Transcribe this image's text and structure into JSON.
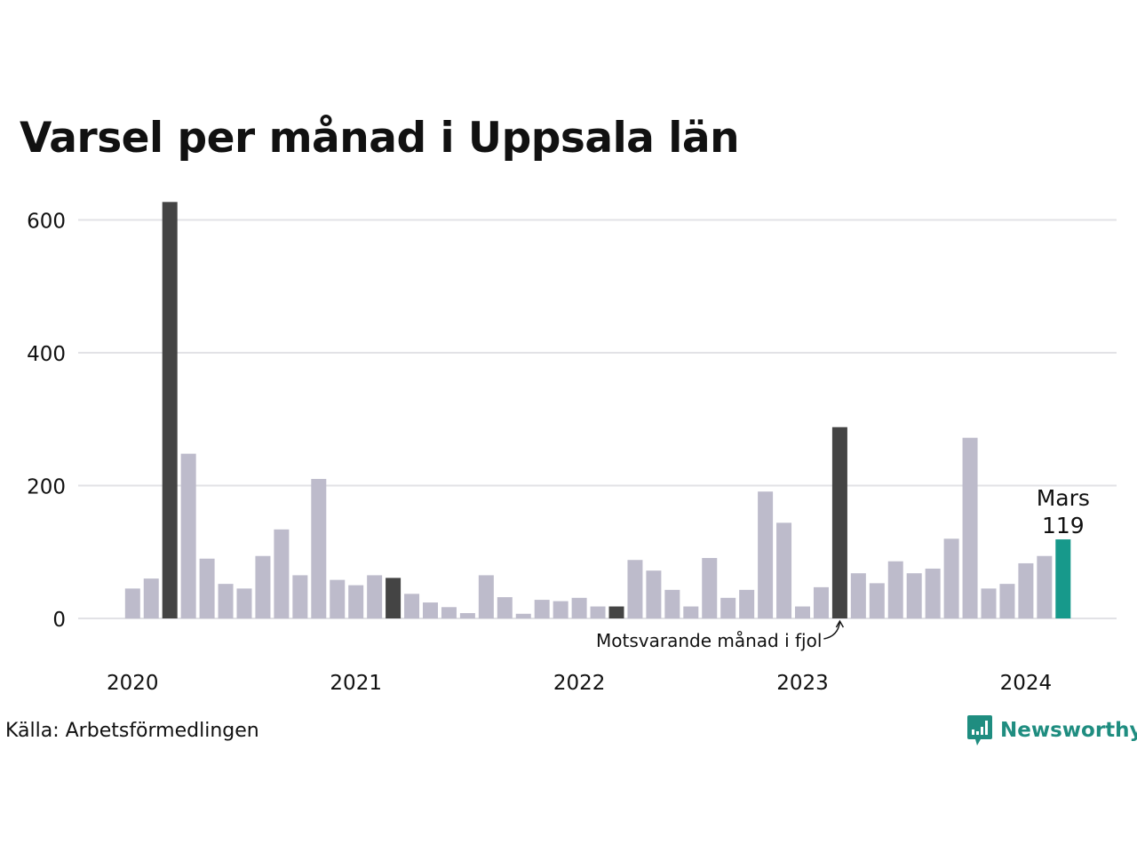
{
  "colors": {
    "default_bar": "#bdbbcb",
    "highlight_bar": "#444444",
    "current_bar": "#17998b",
    "gridline": "#e2e2e6",
    "brand": "#1f8d80"
  },
  "source": "Källa: Arbetsförmedlingen",
  "brand": {
    "name": "Newsworthy",
    "icon": "newsworthy-logo-icon"
  },
  "chart_data": {
    "type": "bar",
    "title": "Varsel per månad i Uppsala län",
    "xlabel": "",
    "ylabel": "",
    "ylim": [
      0,
      630
    ],
    "yticks": [
      0,
      200,
      400,
      600
    ],
    "grid": true,
    "xticks": [
      {
        "label": "2020",
        "index": 0
      },
      {
        "label": "2021",
        "index": 12
      },
      {
        "label": "2022",
        "index": 24
      },
      {
        "label": "2023",
        "index": 36
      },
      {
        "label": "2024",
        "index": 48
      }
    ],
    "categories": [
      "2020-01",
      "2020-02",
      "2020-03",
      "2020-04",
      "2020-05",
      "2020-06",
      "2020-07",
      "2020-08",
      "2020-09",
      "2020-10",
      "2020-11",
      "2020-12",
      "2021-01",
      "2021-02",
      "2021-03",
      "2021-04",
      "2021-05",
      "2021-06",
      "2021-07",
      "2021-08",
      "2021-09",
      "2021-10",
      "2021-11",
      "2021-12",
      "2022-01",
      "2022-02",
      "2022-03",
      "2022-04",
      "2022-05",
      "2022-06",
      "2022-07",
      "2022-08",
      "2022-09",
      "2022-10",
      "2022-11",
      "2022-12",
      "2023-01",
      "2023-02",
      "2023-03",
      "2023-04",
      "2023-05",
      "2023-06",
      "2023-07",
      "2023-08",
      "2023-09",
      "2023-10",
      "2023-11",
      "2023-12",
      "2024-01",
      "2024-02",
      "2024-03"
    ],
    "values": [
      45,
      60,
      627,
      248,
      90,
      52,
      45,
      94,
      134,
      65,
      210,
      58,
      50,
      65,
      61,
      37,
      24,
      17,
      8,
      65,
      32,
      7,
      28,
      26,
      31,
      18,
      18,
      88,
      72,
      43,
      18,
      91,
      31,
      43,
      191,
      144,
      18,
      47,
      288,
      68,
      53,
      86,
      68,
      75,
      120,
      272,
      45,
      52,
      83,
      94,
      119
    ],
    "highlight_months": [
      "2020-03",
      "2021-03",
      "2022-03",
      "2023-03"
    ],
    "current": {
      "index": 50,
      "month_label": "Mars",
      "value_label": "119"
    },
    "annotation": {
      "text": "Motsvarande månad i fjol",
      "target_index": 38
    }
  }
}
